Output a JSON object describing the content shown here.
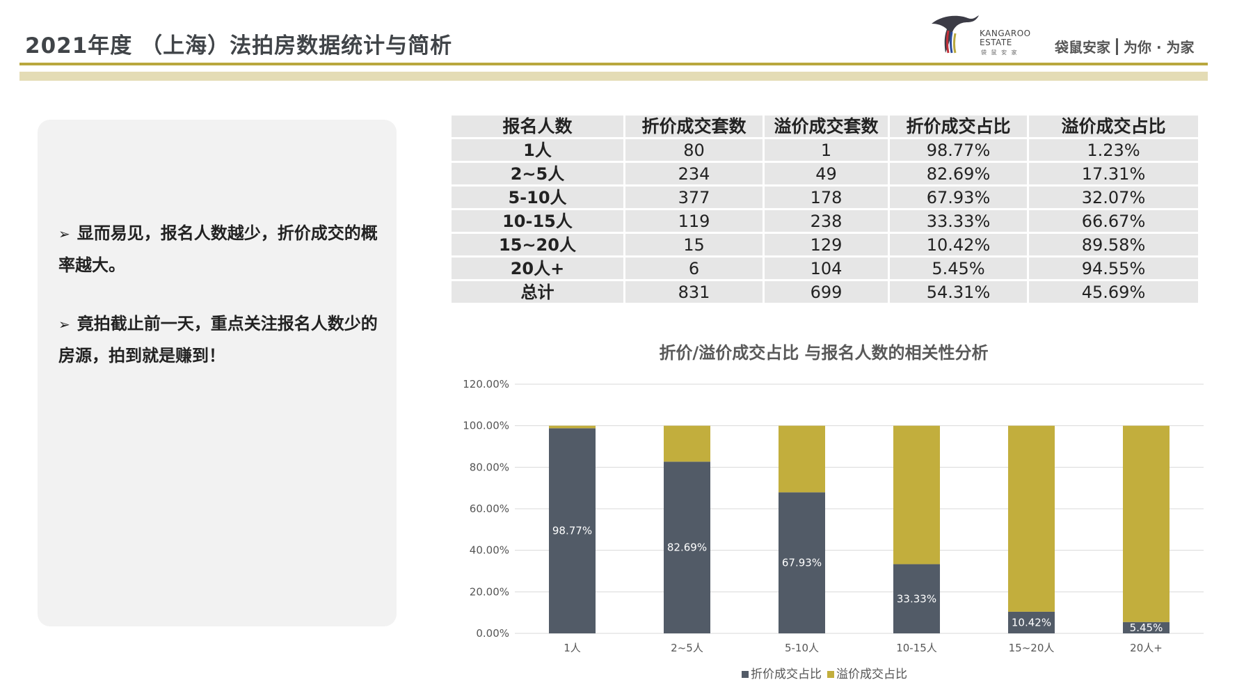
{
  "header": {
    "title": "2021年度 （上海）法拍房数据统计与简析",
    "logo_en_line1": "KANGAROO",
    "logo_en_line2": "ESTATE",
    "logo_cn_small": "袋 鼠 安 家",
    "slogan_brand": "袋鼠安家",
    "slogan_motto": "为你 · 为家"
  },
  "notes": {
    "bullet_1": "显而易见，报名人数越少，折价成交的概率越大。",
    "bullet_2": "竟拍截止前一天，重点关注报名人数少的房源，拍到就是赚到！"
  },
  "table": {
    "headers": [
      "报名人数",
      "折价成交套数",
      "溢价成交套数",
      "折价成交占比",
      "溢价成交占比"
    ],
    "rows": [
      [
        "1人",
        "80",
        "1",
        "98.77%",
        "1.23%"
      ],
      [
        "2~5人",
        "234",
        "49",
        "82.69%",
        "17.31%"
      ],
      [
        "5-10人",
        "377",
        "178",
        "67.93%",
        "32.07%"
      ],
      [
        "10-15人",
        "119",
        "238",
        "33.33%",
        "66.67%"
      ],
      [
        "15~20人",
        "15",
        "129",
        "10.42%",
        "89.58%"
      ],
      [
        "20人+",
        "6",
        "104",
        "5.45%",
        "94.55%"
      ],
      [
        "总计",
        "831",
        "699",
        "54.31%",
        "45.69%"
      ]
    ]
  },
  "colors": {
    "discount": "#525b67",
    "premium": "#c2ae3d",
    "grid": "#d9d9d9",
    "accent_rule": "#b9a73e"
  },
  "chart_data": {
    "type": "bar",
    "stacked": true,
    "title": "折价/溢价成交占比 与报名人数的相关性分析",
    "categories": [
      "1人",
      "2~5人",
      "5-10人",
      "10-15人",
      "15~20人",
      "20人+"
    ],
    "series": [
      {
        "name": "折价成交占比",
        "values": [
          98.77,
          82.69,
          67.93,
          33.33,
          10.42,
          5.45
        ]
      },
      {
        "name": "溢价成交占比",
        "values": [
          1.23,
          17.31,
          32.07,
          66.67,
          89.58,
          94.55
        ]
      }
    ],
    "data_labels": [
      "98.77%",
      "82.69%",
      "67.93%",
      "33.33%",
      "10.42%",
      "5.45%"
    ],
    "ylim": [
      0,
      120
    ],
    "yticks": [
      "0.00%",
      "20.00%",
      "40.00%",
      "60.00%",
      "80.00%",
      "100.00%",
      "120.00%"
    ],
    "grid": true,
    "legend_position": "bottom"
  }
}
